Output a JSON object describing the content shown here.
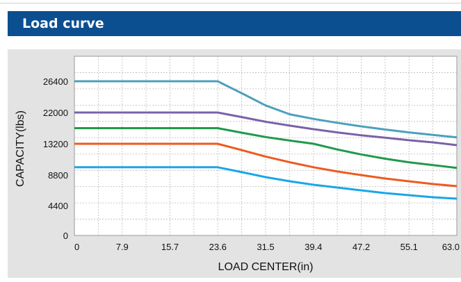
{
  "header": {
    "title": "Load curve",
    "bar_color": "#0c4f91"
  },
  "chart_data": {
    "type": "line",
    "title": "",
    "xlabel": "LOAD CENTER(in)",
    "ylabel": "CAPACITY(lbs)",
    "x_ticks": [
      "0",
      "7.9",
      "15.7",
      "23.6",
      "31.5",
      "39.4",
      "47.2",
      "55.1",
      "63.0"
    ],
    "y_ticks": [
      "0",
      "4400",
      "8800",
      "13200",
      "22000",
      "26400"
    ],
    "xlim": [
      0,
      63.0
    ],
    "grid": true,
    "legend": "none",
    "series": [
      {
        "color": "#4d9fbd",
        "x": [
          0,
          23.6,
          27.6,
          31.5,
          35.5,
          39.4,
          43.3,
          47.2,
          51.2,
          55.1,
          59.1,
          63.0
        ],
        "y": [
          26400,
          26400,
          24700,
          23000,
          21500,
          20200,
          19100,
          18100,
          17200,
          16400,
          15700,
          15000
        ]
      },
      {
        "color": "#7a61a8",
        "x": [
          0,
          23.6,
          27.6,
          31.5,
          35.5,
          39.4,
          43.3,
          47.2,
          51.2,
          55.1,
          59.1,
          63.0
        ],
        "y": [
          22000,
          22000,
          20700,
          19400,
          18300,
          17300,
          16400,
          15600,
          14900,
          14200,
          13600,
          13000
        ]
      },
      {
        "color": "#1f9a4b",
        "x": [
          0,
          23.6,
          27.6,
          31.5,
          35.5,
          39.4,
          43.3,
          47.2,
          51.2,
          55.1,
          59.1,
          63.0
        ],
        "y": [
          17600,
          17600,
          16300,
          15100,
          14100,
          13200,
          12400,
          11700,
          11100,
          10600,
          10200,
          9800
        ]
      },
      {
        "color": "#ee5a1e",
        "x": [
          0,
          23.6,
          27.6,
          31.5,
          35.5,
          39.4,
          43.3,
          47.2,
          51.2,
          55.1,
          59.1,
          63.0
        ],
        "y": [
          13200,
          13200,
          12300,
          11400,
          10600,
          9900,
          9300,
          8800,
          8300,
          7900,
          7500,
          7200
        ]
      },
      {
        "color": "#1aa6e6",
        "x": [
          0,
          23.6,
          27.6,
          31.5,
          35.5,
          39.4,
          43.3,
          47.2,
          51.2,
          55.1,
          59.1,
          63.0
        ],
        "y": [
          9900,
          9900,
          9200,
          8500,
          7900,
          7400,
          7000,
          6600,
          6200,
          5900,
          5600,
          5400
        ]
      }
    ]
  }
}
